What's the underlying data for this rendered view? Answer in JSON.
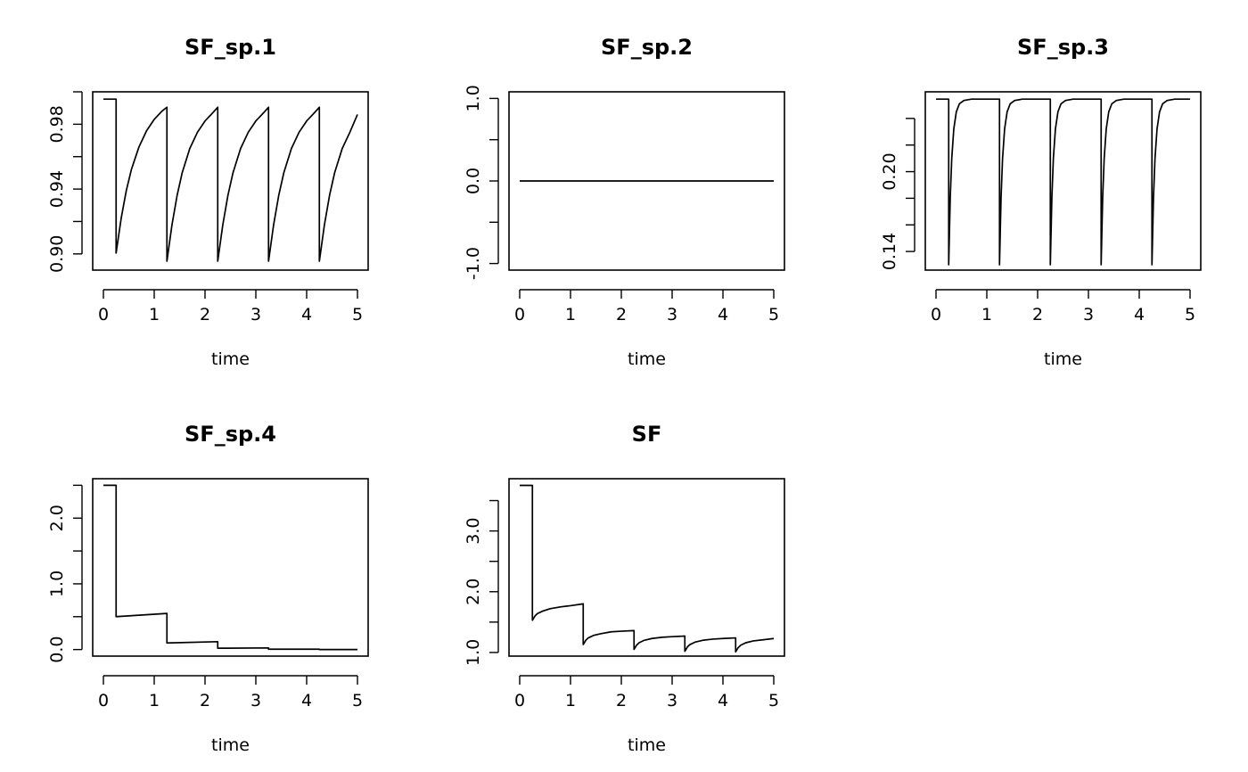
{
  "chart_data": [
    {
      "type": "line",
      "title": "SF_sp.1",
      "xlabel": "time",
      "ylabel": "",
      "xlim": [
        0,
        5
      ],
      "ylim": [
        0.89,
        1.0
      ],
      "xticks": [
        0,
        1,
        2,
        3,
        4,
        5
      ],
      "xtick_labels": [
        "0",
        "1",
        "2",
        "3",
        "4",
        "5"
      ],
      "yticks": [
        0.9,
        0.92,
        0.94,
        0.96,
        0.98,
        1.0
      ],
      "ytick_labels": [
        "0.90",
        "",
        "0.94",
        "",
        "0.98",
        ""
      ],
      "series": [
        {
          "x": [
            0,
            0.25,
            0.25,
            0.35,
            0.45,
            0.55,
            0.7,
            0.85,
            1.0,
            1.15,
            1.25,
            1.25,
            1.35,
            1.45,
            1.55,
            1.7,
            1.85,
            2.0,
            2.15,
            2.25,
            2.25,
            2.35,
            2.45,
            2.55,
            2.7,
            2.85,
            3.0,
            3.15,
            3.25,
            3.25,
            3.35,
            3.45,
            3.55,
            3.7,
            3.85,
            4.0,
            4.15,
            4.25,
            4.25,
            4.35,
            4.45,
            4.55,
            4.7,
            4.85,
            5.0
          ],
          "y": [
            0.9955,
            0.9955,
            0.9005,
            0.922,
            0.939,
            0.952,
            0.966,
            0.976,
            0.983,
            0.988,
            0.9905,
            0.8955,
            0.918,
            0.936,
            0.95,
            0.965,
            0.975,
            0.982,
            0.987,
            0.9905,
            0.8955,
            0.918,
            0.936,
            0.95,
            0.965,
            0.975,
            0.982,
            0.987,
            0.9905,
            0.8955,
            0.918,
            0.936,
            0.95,
            0.965,
            0.975,
            0.982,
            0.987,
            0.9905,
            0.8955,
            0.918,
            0.936,
            0.95,
            0.965,
            0.975,
            0.986
          ]
        }
      ]
    },
    {
      "type": "line",
      "title": "SF_sp.2",
      "xlabel": "time",
      "ylabel": "",
      "xlim": [
        0,
        5
      ],
      "ylim": [
        -1.08,
        1.08
      ],
      "xticks": [
        0,
        1,
        2,
        3,
        4,
        5
      ],
      "xtick_labels": [
        "0",
        "1",
        "2",
        "3",
        "4",
        "5"
      ],
      "yticks": [
        -1.0,
        -0.5,
        0.0,
        0.5,
        1.0
      ],
      "ytick_labels": [
        "-1.0",
        "",
        "0.0",
        "",
        "1.0"
      ],
      "series": [
        {
          "x": [
            0,
            5
          ],
          "y": [
            0,
            0
          ]
        }
      ]
    },
    {
      "type": "line",
      "title": "SF_sp.3",
      "xlabel": "time",
      "ylabel": "",
      "xlim": [
        0,
        5
      ],
      "ylim": [
        0.126,
        0.26
      ],
      "xticks": [
        0,
        1,
        2,
        3,
        4,
        5
      ],
      "xtick_labels": [
        "0",
        "1",
        "2",
        "3",
        "4",
        "5"
      ],
      "yticks": [
        0.14,
        0.16,
        0.18,
        0.2,
        0.22,
        0.24
      ],
      "ytick_labels": [
        "0.14",
        "",
        "",
        "0.20",
        "",
        ""
      ],
      "series": [
        {
          "x": [
            0,
            0.25,
            0.25,
            0.28,
            0.31,
            0.35,
            0.4,
            0.46,
            0.55,
            0.7,
            1.25,
            1.25,
            1.28,
            1.31,
            1.35,
            1.4,
            1.46,
            1.55,
            1.7,
            2.25,
            2.25,
            2.28,
            2.31,
            2.35,
            2.4,
            2.46,
            2.55,
            2.7,
            3.25,
            3.25,
            3.28,
            3.31,
            3.35,
            3.4,
            3.46,
            3.55,
            3.7,
            4.25,
            4.25,
            4.28,
            4.31,
            4.35,
            4.4,
            4.46,
            4.55,
            4.7,
            5.0
          ],
          "y": [
            0.2545,
            0.2545,
            0.13,
            0.18,
            0.21,
            0.232,
            0.245,
            0.251,
            0.2535,
            0.2545,
            0.2545,
            0.13,
            0.18,
            0.21,
            0.232,
            0.245,
            0.251,
            0.2535,
            0.2545,
            0.2545,
            0.13,
            0.18,
            0.21,
            0.232,
            0.245,
            0.251,
            0.2535,
            0.2545,
            0.2545,
            0.13,
            0.18,
            0.21,
            0.232,
            0.245,
            0.251,
            0.2535,
            0.2545,
            0.2545,
            0.13,
            0.18,
            0.21,
            0.232,
            0.245,
            0.251,
            0.2535,
            0.2545,
            0.2545
          ]
        }
      ]
    },
    {
      "type": "line",
      "title": "SF_sp.4",
      "xlabel": "time",
      "ylabel": "",
      "xlim": [
        0,
        5
      ],
      "ylim": [
        -0.1,
        2.6
      ],
      "xticks": [
        0,
        1,
        2,
        3,
        4,
        5
      ],
      "xtick_labels": [
        "0",
        "1",
        "2",
        "3",
        "4",
        "5"
      ],
      "yticks": [
        0.0,
        0.5,
        1.0,
        1.5,
        2.0,
        2.5
      ],
      "ytick_labels": [
        "0.0",
        "",
        "1.0",
        "",
        "2.0",
        ""
      ],
      "series": [
        {
          "x": [
            0,
            0.25,
            0.25,
            1.25,
            1.25,
            2.25,
            2.25,
            3.25,
            3.25,
            4.25,
            4.25,
            5.0
          ],
          "y": [
            2.5,
            2.5,
            0.5,
            0.55,
            0.1,
            0.12,
            0.02,
            0.025,
            0.005,
            0.006,
            0.0,
            0.0
          ]
        }
      ]
    },
    {
      "type": "line",
      "title": "SF",
      "xlabel": "time",
      "ylabel": "",
      "xlim": [
        0,
        5
      ],
      "ylim": [
        0.94,
        3.86
      ],
      "xticks": [
        0,
        1,
        2,
        3,
        4,
        5
      ],
      "xtick_labels": [
        "0",
        "1",
        "2",
        "3",
        "4",
        "5"
      ],
      "yticks": [
        1.0,
        1.5,
        2.0,
        2.5,
        3.0,
        3.5
      ],
      "ytick_labels": [
        "1.0",
        "",
        "2.0",
        "",
        "3.0",
        ""
      ],
      "series": [
        {
          "x": [
            0,
            0.25,
            0.25,
            0.3,
            0.35,
            0.45,
            0.6,
            0.8,
            1.0,
            1.25,
            1.25,
            1.3,
            1.35,
            1.45,
            1.6,
            1.8,
            2.0,
            2.25,
            2.25,
            2.3,
            2.35,
            2.45,
            2.6,
            2.8,
            3.0,
            3.25,
            3.25,
            3.3,
            3.35,
            3.45,
            3.6,
            3.8,
            4.0,
            4.25,
            4.25,
            4.3,
            4.35,
            4.45,
            4.6,
            4.8,
            5.0
          ],
          "y": [
            3.75,
            3.75,
            1.53,
            1.6,
            1.64,
            1.68,
            1.72,
            1.75,
            1.77,
            1.8,
            1.13,
            1.2,
            1.24,
            1.28,
            1.31,
            1.34,
            1.35,
            1.36,
            1.05,
            1.12,
            1.16,
            1.2,
            1.23,
            1.25,
            1.26,
            1.27,
            1.02,
            1.09,
            1.13,
            1.17,
            1.2,
            1.22,
            1.23,
            1.24,
            1.01,
            1.08,
            1.12,
            1.16,
            1.19,
            1.21,
            1.23
          ]
        }
      ]
    }
  ]
}
